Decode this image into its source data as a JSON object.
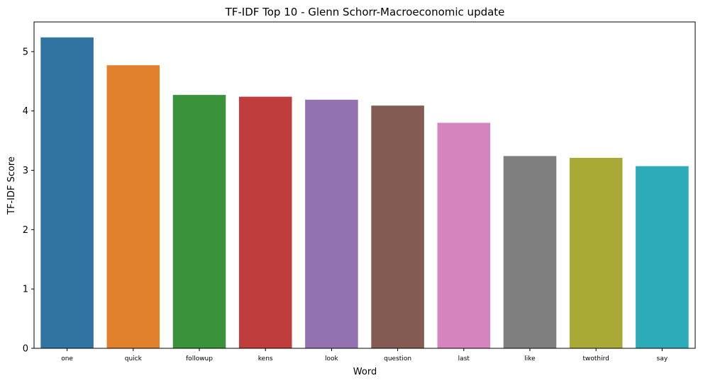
{
  "chart_data": {
    "type": "bar",
    "title": "TF-IDF Top 10 - Glenn Schorr-Macroeconomic update",
    "xlabel": "Word",
    "ylabel": "TF-IDF Score",
    "categories": [
      "one",
      "quick",
      "followup",
      "kens",
      "look",
      "question",
      "last",
      "like",
      "twothird",
      "say"
    ],
    "values": [
      5.24,
      4.77,
      4.27,
      4.24,
      4.19,
      4.09,
      3.8,
      3.24,
      3.21,
      3.07
    ],
    "colors": [
      "#3274a1",
      "#e1812c",
      "#3a923a",
      "#c03d3e",
      "#9372b2",
      "#845b53",
      "#d684bd",
      "#7f7f7f",
      "#a9aa35",
      "#2eabb8"
    ],
    "ylim": [
      0,
      5.5
    ],
    "yticks": [
      0,
      1,
      2,
      3,
      4,
      5
    ],
    "grid": false,
    "legend": "none"
  }
}
